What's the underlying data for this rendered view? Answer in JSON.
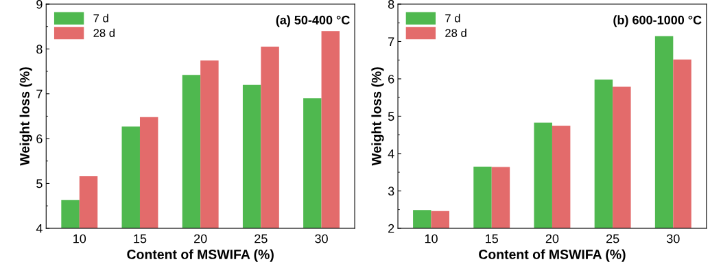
{
  "chart_data": [
    {
      "type": "bar",
      "title": "(a) 50-400 °C",
      "xlabel": "Content of MSWIFA (%)",
      "ylabel": "Weight loss (%)",
      "categories": [
        "10",
        "15",
        "20",
        "25",
        "30"
      ],
      "series": [
        {
          "name": "7 d",
          "color": "#4fb84f",
          "values": [
            4.63,
            6.27,
            7.42,
            7.2,
            6.9
          ]
        },
        {
          "name": "28 d",
          "color": "#e36b6b",
          "values": [
            5.16,
            6.48,
            7.74,
            8.05,
            8.4
          ]
        }
      ],
      "ylim": [
        4,
        9
      ],
      "yticks": [
        4,
        5,
        6,
        7,
        8,
        9
      ],
      "legend": "top left",
      "grid": false
    },
    {
      "type": "bar",
      "title": "(b) 600-1000 °C",
      "xlabel": "Content of MSWIFA (%)",
      "ylabel": "Weight loss (%)",
      "categories": [
        "10",
        "15",
        "20",
        "25",
        "30"
      ],
      "series": [
        {
          "name": "7 d",
          "color": "#4fb84f",
          "values": [
            2.49,
            3.65,
            4.83,
            5.98,
            7.14
          ]
        },
        {
          "name": "28 d",
          "color": "#e36b6b",
          "values": [
            2.46,
            3.64,
            4.74,
            5.79,
            6.52
          ]
        }
      ],
      "ylim": [
        2,
        8
      ],
      "yticks": [
        2,
        3,
        4,
        5,
        6,
        7,
        8
      ],
      "legend": "top left",
      "grid": false
    }
  ]
}
